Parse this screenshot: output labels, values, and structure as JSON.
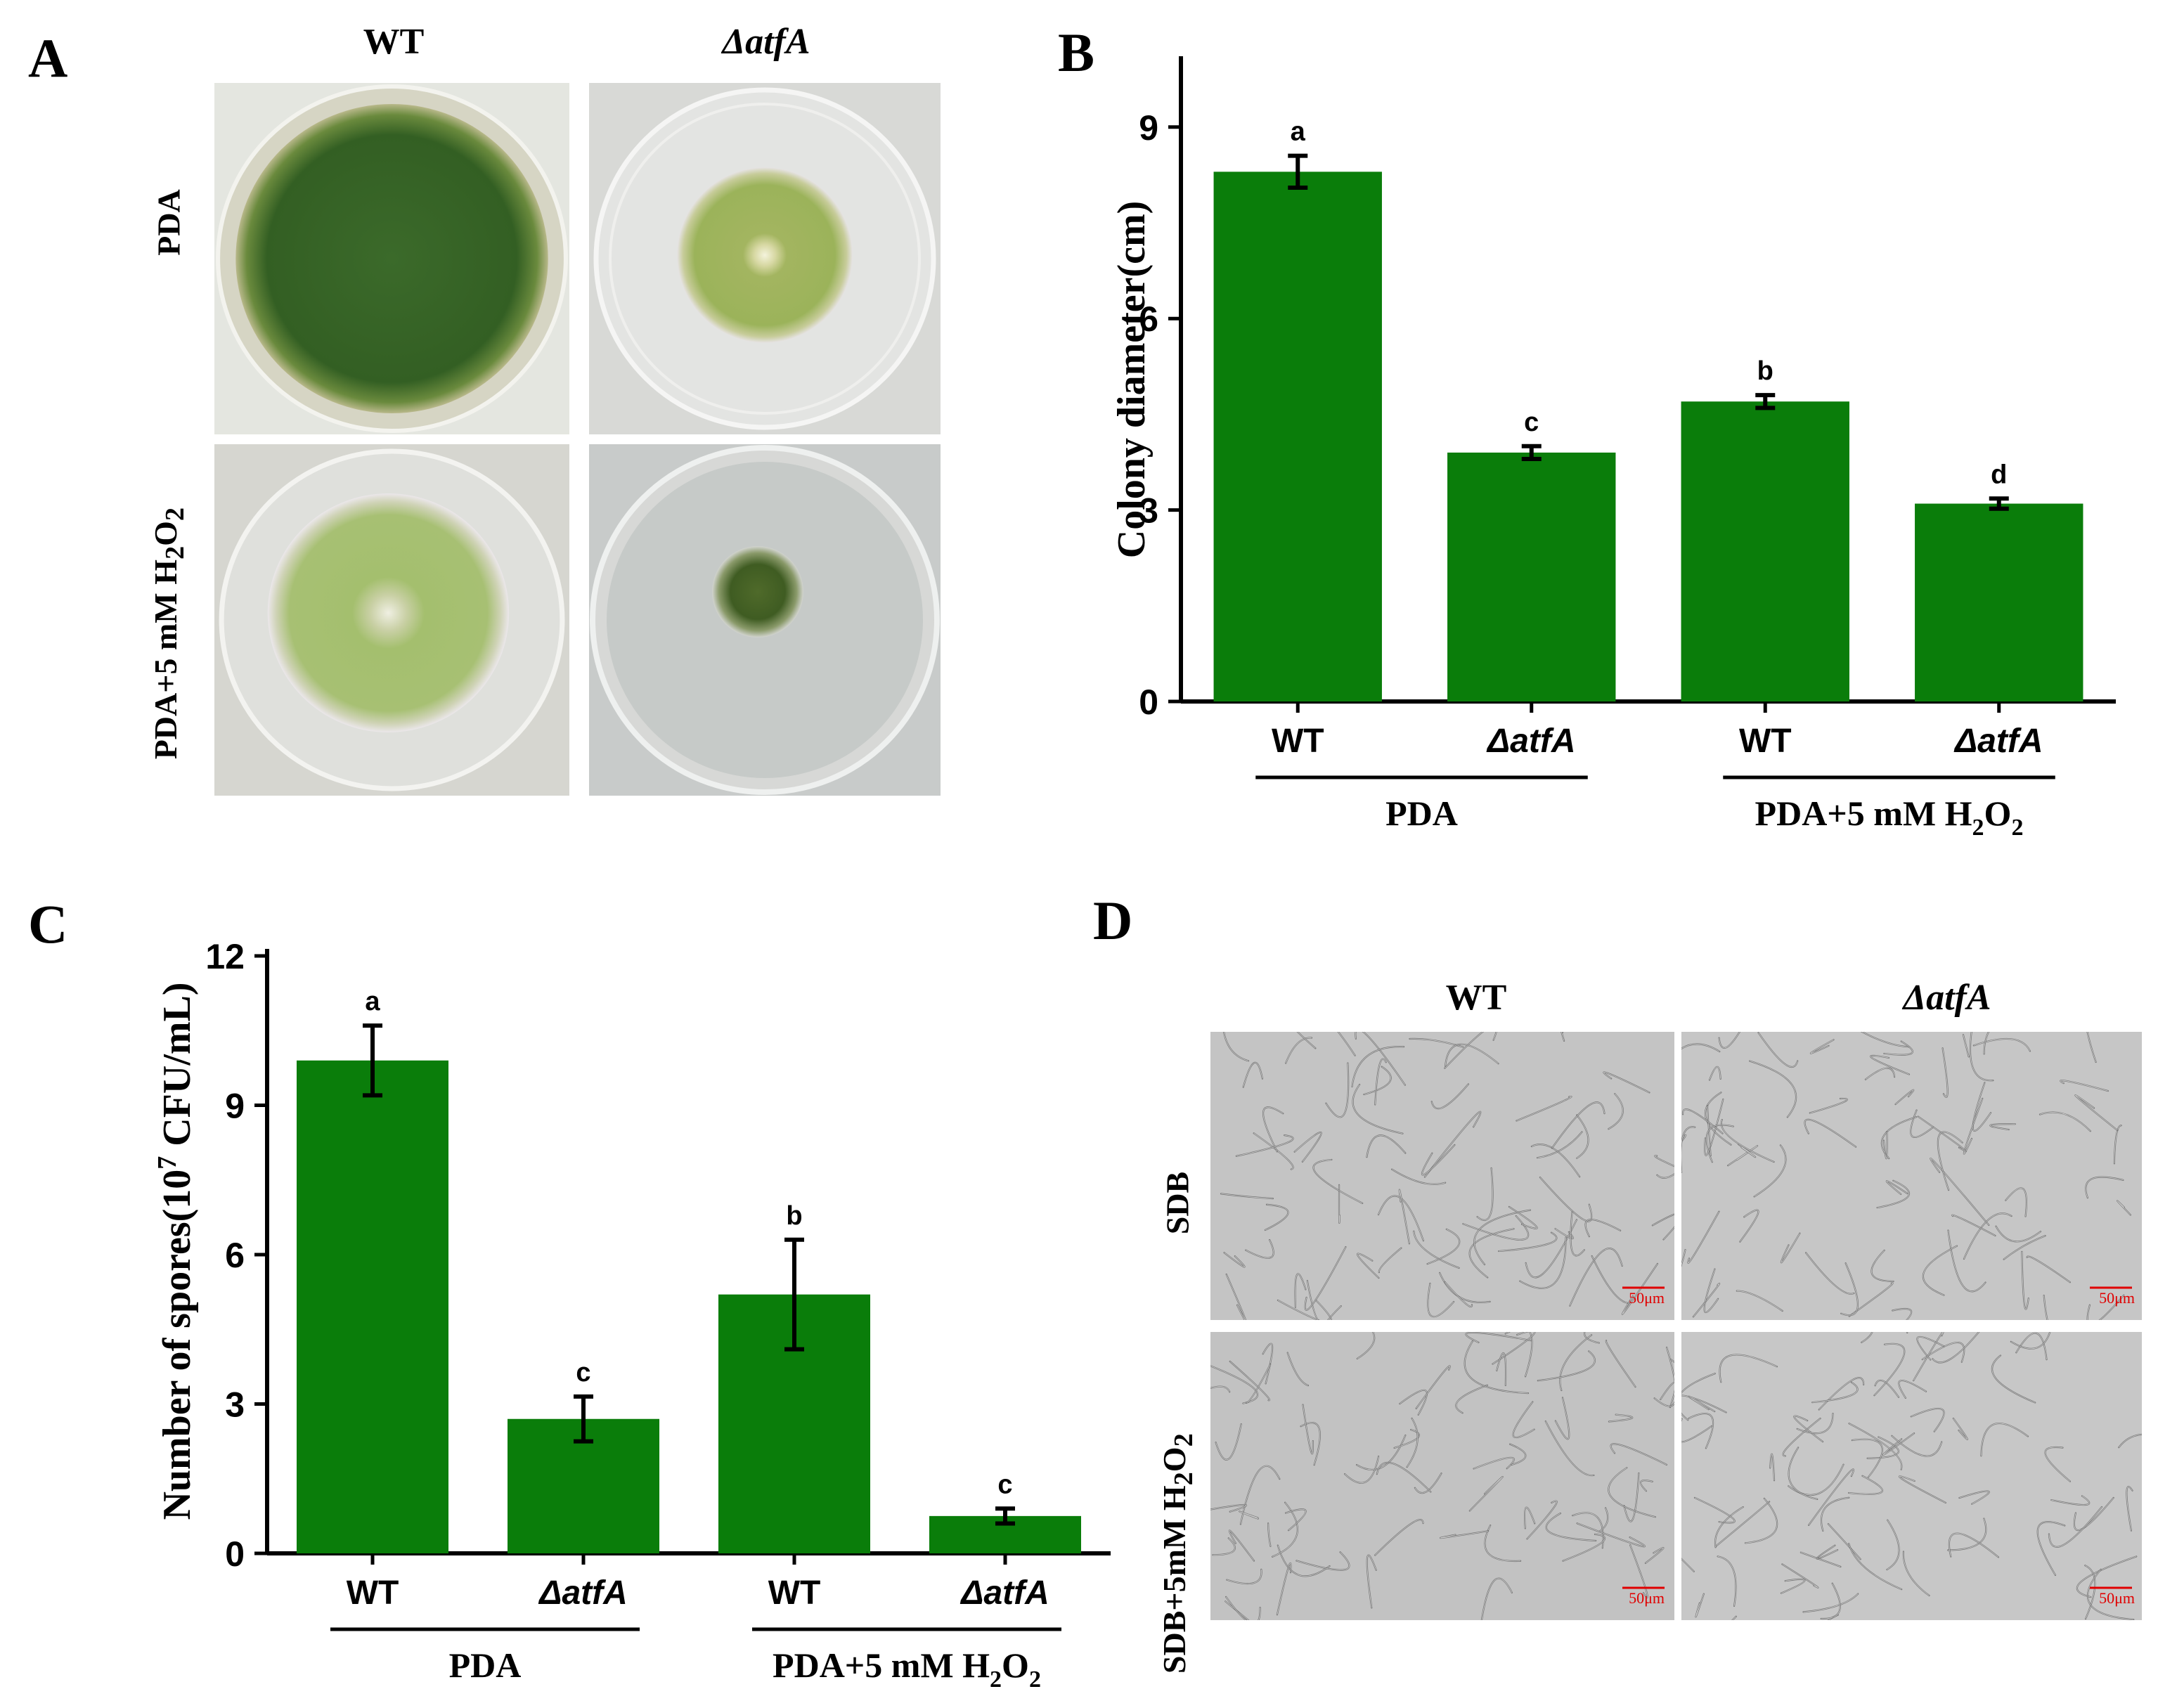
{
  "panel_a": {
    "letter": "A",
    "col_wt": "WT",
    "col_mut": "ΔatfA",
    "row_1": "PDA",
    "row_2_prefix": "PDA+5 mM H",
    "row_2_sub1": "2",
    "row_2_mid": "O",
    "row_2_sub2": "2",
    "colors": {
      "dark_green": "#2f5a1e",
      "light_green": "#9db561",
      "agar": "#d9dcd2"
    }
  },
  "panel_b": {
    "letter": "B",
    "group_1": "PDA",
    "group_2_prefix": "PDA+5 mM H",
    "group_2_sub1": "2",
    "group_2_mid": "O",
    "group_2_sub2": "2",
    "chart_data": {
      "type": "bar",
      "categories": [
        "WT",
        "ΔatfA",
        "WT",
        "ΔatfA"
      ],
      "values": [
        8.3,
        3.9,
        4.7,
        3.1
      ],
      "errors": [
        0.25,
        0.1,
        0.1,
        0.08
      ],
      "significance": [
        "a",
        "c",
        "b",
        "d"
      ],
      "ylabel": "Colony diameter(cm)",
      "ylim": [
        0,
        10
      ],
      "yticks": [
        "0",
        "3",
        "6",
        "9"
      ],
      "bar_color": "#0a7d0a"
    }
  },
  "panel_c": {
    "letter": "C",
    "group_1": "PDA",
    "group_2_prefix": "PDA+5 mM H",
    "group_2_sub1": "2",
    "group_2_mid": "O",
    "group_2_sub2": "2",
    "chart_data": {
      "type": "bar",
      "categories": [
        "WT",
        "ΔatfA",
        "WT",
        "ΔatfA"
      ],
      "values": [
        9.9,
        2.7,
        5.2,
        0.75
      ],
      "errors": [
        0.7,
        0.45,
        1.1,
        0.15
      ],
      "significance": [
        "a",
        "c",
        "b",
        "c"
      ],
      "ylabel_prefix": "Number of spores(10",
      "ylabel_sup": "7",
      "ylabel_suffix": " CFU/mL)",
      "ylim": [
        0,
        12
      ],
      "yticks": [
        "0",
        "3",
        "6",
        "9",
        "12"
      ],
      "bar_color": "#0a7d0a"
    }
  },
  "panel_d": {
    "letter": "D",
    "col_wt": "WT",
    "col_mut": "ΔatfA",
    "row_1": "SDB",
    "row_2_prefix": "SDB+5mM H",
    "row_2_sub1": "2",
    "row_2_mid": "O",
    "row_2_sub2": "2",
    "scale_bar": "50μm",
    "scale_color": "#e00000"
  }
}
